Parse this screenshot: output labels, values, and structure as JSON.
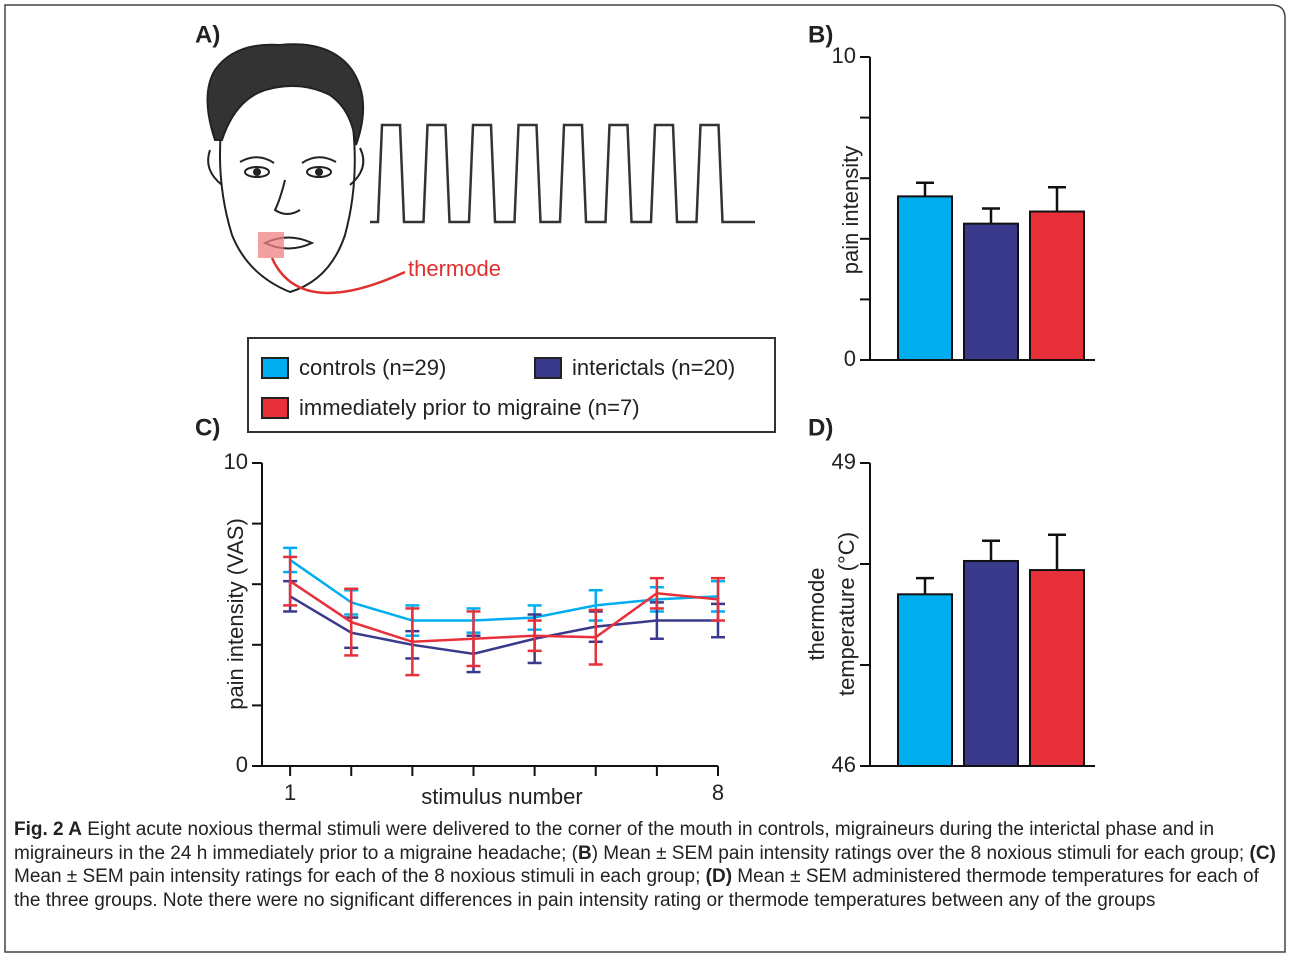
{
  "panel_a": {
    "label": "A)",
    "thermode_label": "thermode"
  },
  "chart_data": [
    {
      "type": "bar",
      "panel_label": "B)",
      "ylabel": "pain intensity",
      "values": [
        5.4,
        4.5,
        4.9
      ],
      "errors": [
        0.45,
        0.5,
        0.8
      ],
      "colors": [
        "#00aeef",
        "#3a3a8c",
        "#e8303a"
      ],
      "ylim": [
        0,
        10
      ],
      "yticks": [
        0,
        10
      ],
      "yminorticks": [
        2,
        4,
        6,
        8
      ]
    },
    {
      "type": "line",
      "panel_label": "C)",
      "ylabel": "pain intensity (VAS)",
      "xlabel": "stimulus number",
      "x": [
        1,
        2,
        3,
        4,
        5,
        6,
        7,
        8
      ],
      "series": [
        {
          "name": "controls (n=29)",
          "color": "#00aeef",
          "values": [
            6.8,
            5.4,
            4.8,
            4.8,
            4.9,
            5.3,
            5.5,
            5.6
          ],
          "errors": [
            0.4,
            0.4,
            0.5,
            0.4,
            0.4,
            0.5,
            0.4,
            0.5
          ]
        },
        {
          "name": "interictals (n=20)",
          "color": "#3a3a8c",
          "values": [
            5.6,
            4.4,
            4.0,
            3.7,
            4.2,
            4.6,
            4.8,
            4.8
          ],
          "errors": [
            0.5,
            0.5,
            0.45,
            0.6,
            0.8,
            0.5,
            0.6,
            0.55
          ]
        },
        {
          "name": "immediately prior to migraine (n=7)",
          "color": "#e8303a",
          "values": [
            6.1,
            4.75,
            4.1,
            4.2,
            4.3,
            4.25,
            5.7,
            5.5
          ],
          "errors": [
            0.8,
            1.1,
            1.1,
            0.9,
            0.5,
            0.9,
            0.5,
            0.7
          ]
        }
      ],
      "xlim": [
        0.54,
        8
      ],
      "xticks": [
        1,
        8
      ],
      "xminorticks": [
        2,
        3,
        4,
        5,
        6,
        7
      ],
      "ylim": [
        0,
        10
      ],
      "yticks": [
        0,
        10
      ],
      "yminorticks": [
        2,
        4,
        6,
        8
      ]
    },
    {
      "type": "bar",
      "panel_label": "D)",
      "ylabel": [
        "thermode",
        "temperature (°C)"
      ],
      "values": [
        47.7,
        48.03,
        47.94
      ],
      "errors": [
        0.16,
        0.2,
        0.35
      ],
      "colors": [
        "#00aeef",
        "#3a3a8c",
        "#e8303a"
      ],
      "ylim": [
        46,
        49
      ],
      "yticks": [
        46,
        49
      ],
      "yminorticks": [
        47,
        48
      ]
    }
  ],
  "caption": [
    {
      "text": "Fig. 2 A",
      "bold": true
    },
    {
      "text": " Eight acute noxious thermal stimuli were delivered to the corner of the mouth in controls, migraineurs during the interictal phase and in migraineurs in the 24 h immediately prior to a migraine headache; (",
      "bold": false
    },
    {
      "text": "B",
      "bold": true
    },
    {
      "text": ") Mean ± SEM pain intensity ratings over the 8 noxious stimuli for each group; ",
      "bold": false
    },
    {
      "text": "(C)",
      "bold": true
    },
    {
      "text": " Mean ± SEM pain intensity ratings for each of the 8 noxious stimuli in each group; ",
      "bold": false
    },
    {
      "text": "(D)",
      "bold": true
    },
    {
      "text": " Mean ± SEM administered thermode temperatures for each of the three groups. Note there were no significant differences in pain intensity rating or thermode temperatures between any of the groups",
      "bold": false
    }
  ]
}
